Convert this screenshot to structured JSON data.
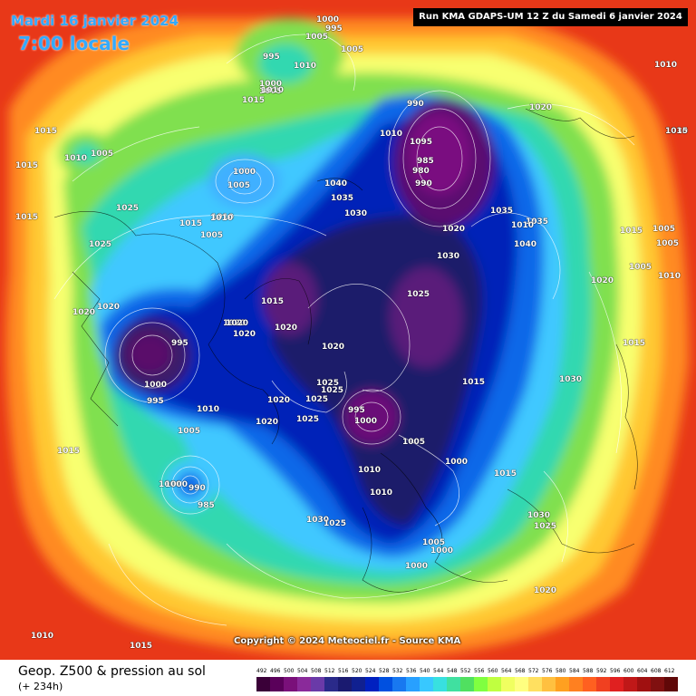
{
  "header": {
    "date": "Mardi 16 janvier 2024",
    "time": "7:00 locale",
    "run": "Run KMA GDAPS-UM 12 Z du Samedi 6 janvier 2024"
  },
  "copyright": "Copyright © 2024 Meteociel.fr - Source KMA",
  "legend": {
    "title": "Geop. Z500 & pression au sol",
    "subtitle": "(+ 234h)",
    "scale_values": [
      "492",
      "496",
      "500",
      "504",
      "508",
      "512",
      "516",
      "520",
      "524",
      "528",
      "532",
      "536",
      "540",
      "544",
      "548",
      "552",
      "556",
      "560",
      "564",
      "568",
      "572",
      "576",
      "580",
      "584",
      "588",
      "592",
      "596",
      "600",
      "604",
      "608",
      "612"
    ],
    "scale_colors": [
      "#3a0038",
      "#5a005a",
      "#7a107a",
      "#8a2a9a",
      "#6a3aa8",
      "#2a2a8a",
      "#1a1a70",
      "#102090",
      "#0020c0",
      "#0050e0",
      "#1878f0",
      "#28a0ff",
      "#38c8ff",
      "#38e0e0",
      "#40e0a0",
      "#50e060",
      "#80ff40",
      "#c0ff40",
      "#f0ff60",
      "#ffff80",
      "#ffe060",
      "#ffc040",
      "#ffa020",
      "#ff8020",
      "#ff6020",
      "#f04020",
      "#e02020",
      "#c01818",
      "#a01010",
      "#801010",
      "#600808"
    ]
  },
  "pressure_labels": [
    "1000",
    "995",
    "1005",
    "1005",
    "995",
    "1010",
    "1000",
    "1005",
    "1015",
    "1015",
    "1010",
    "1005",
    "1010",
    "990",
    "1010",
    "1095",
    "985",
    "980",
    "990",
    "1020",
    "1030",
    "1035",
    "1040",
    "1030",
    "1040",
    "1035",
    "1015",
    "1005",
    "1005",
    "1005",
    "1010",
    "1025",
    "1015",
    "1025",
    "1010",
    "1015",
    "1005",
    "1020",
    "1025",
    "1000",
    "1005",
    "1030",
    "1035",
    "1020",
    "1020",
    "1015",
    "1020",
    "1020",
    "995",
    "1000",
    "995",
    "1020",
    "1020",
    "1020",
    "1025",
    "1025",
    "1025",
    "1010",
    "1020",
    "1015",
    "1030",
    "1015",
    "1015",
    "1005",
    "1020",
    "1020",
    "1025",
    "995",
    "1000",
    "1005",
    "1000",
    "1010",
    "1015",
    "1010",
    "1000",
    "1005",
    "1000",
    "1030",
    "1025",
    "1030",
    "1025",
    "1000",
    "990",
    "985",
    "1015",
    "1000",
    "1020",
    "1010",
    "1015",
    "1015",
    "1010",
    "1010",
    "1010"
  ],
  "map_colors": {
    "outer": "#e83818",
    "ring_orange": "#ff8a20",
    "ring_yellow": "#ffe040",
    "ring_lightyellow": "#f8ff70",
    "ring_green": "#70e050",
    "ring_teal": "#30d0c0",
    "ring_cyan": "#40c8ff",
    "ring_blue": "#1060e0",
    "ring_darkblue": "#0018b0",
    "core_navy": "#1a1a68",
    "core_purple": "#5a1a7a",
    "core_magenta": "#7a0a80"
  }
}
